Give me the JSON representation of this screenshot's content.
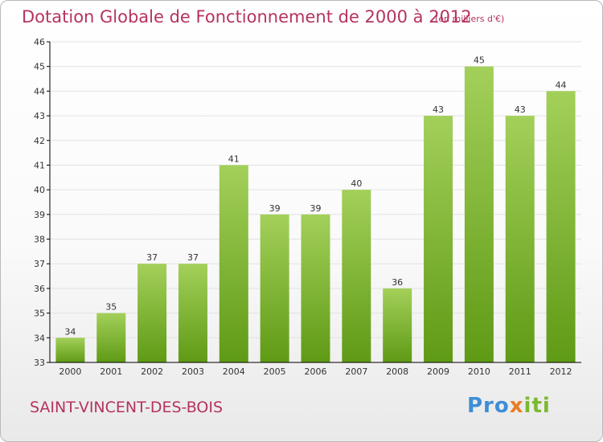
{
  "header": {
    "title": "Dotation Globale de Fonctionnement de 2000 à 2012",
    "unit": "(en milliers d'€)"
  },
  "footer": {
    "commune": "SAINT-VINCENT-DES-BOIS",
    "logo": {
      "part1": "Pro",
      "part2": "x",
      "part3": "iti"
    }
  },
  "colors": {
    "title": "#b5335f",
    "bar_light": "#a3d05a",
    "bar_dark": "#5f9a15",
    "axis": "#000000",
    "grid": "#e2e2e2"
  },
  "chart_data": {
    "type": "bar",
    "title": "Dotation Globale de Fonctionnement de 2000 à 2012",
    "subtitle": "(en milliers d'€)",
    "categories": [
      "2000",
      "2001",
      "2002",
      "2003",
      "2004",
      "2005",
      "2006",
      "2007",
      "2008",
      "2009",
      "2010",
      "2011",
      "2012"
    ],
    "values": [
      34,
      35,
      37,
      37,
      41,
      39,
      39,
      40,
      36,
      43,
      45,
      43,
      44
    ],
    "xlabel": "",
    "ylabel": "",
    "ylim": [
      33,
      46
    ],
    "yticks": [
      33,
      34,
      35,
      36,
      37,
      38,
      39,
      40,
      41,
      42,
      43,
      44,
      45,
      46
    ],
    "grid": true,
    "legend": "none"
  }
}
